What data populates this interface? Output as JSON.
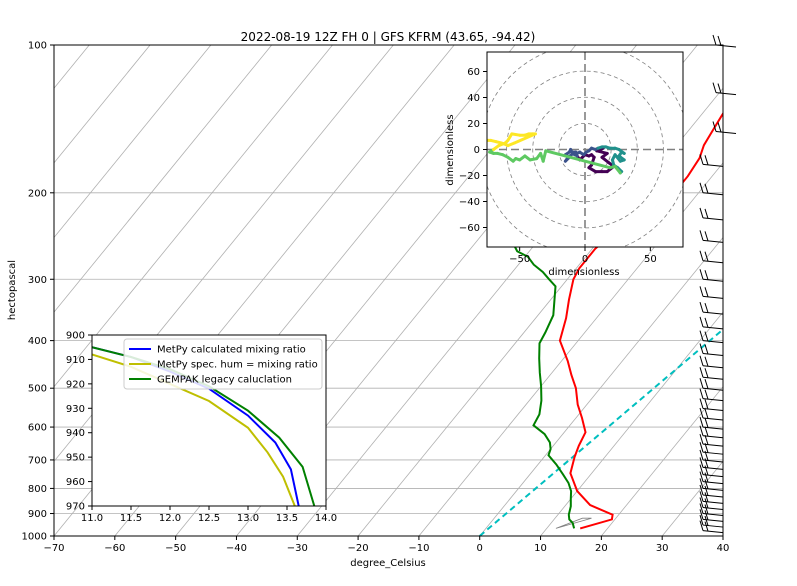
{
  "chart_data": [
    {
      "type": "line",
      "subtype": "skew-t",
      "title": "2022-08-19 12Z FH 0 | GFS KFRM (43.65, -94.42)",
      "xlabel": "degree_Celsius",
      "ylabel": "hectopascal",
      "xlim": [
        -70,
        40
      ],
      "ylim": [
        1000,
        100
      ],
      "yscale": "log",
      "grid": true,
      "xticks": [
        "−70",
        "−60",
        "−50",
        "−40",
        "−30",
        "−20",
        "−10",
        "0",
        "10",
        "20",
        "30",
        "40"
      ],
      "yticks": [
        "100",
        "200",
        "300",
        "400",
        "500",
        "600",
        "700",
        "800",
        "900",
        "1000"
      ],
      "series": [
        {
          "role": "temperature",
          "color": "#ff0000",
          "points": [
            [
              15.5,
              965
            ],
            [
              19.5,
              925
            ],
            [
              19.0,
              905
            ],
            [
              14.0,
              865
            ],
            [
              10.0,
              810
            ],
            [
              6.5,
              745
            ],
            [
              5.0,
              690
            ],
            [
              4.2,
              655
            ],
            [
              3.5,
              615
            ],
            [
              1.0,
              575
            ],
            [
              -1.5,
              540
            ],
            [
              -4.0,
              500
            ],
            [
              -6.5,
              470
            ],
            [
              -9.0,
              440
            ],
            [
              -13.0,
              400
            ],
            [
              -15.0,
              360
            ],
            [
              -17.0,
              330
            ],
            [
              -19.0,
              300
            ],
            [
              -19.5,
              285
            ],
            [
              -19.5,
              260
            ],
            [
              -18.8,
              245
            ],
            [
              -18.0,
              235
            ],
            [
              -16.5,
              225
            ],
            [
              -15.0,
              210
            ],
            [
              -14.0,
              200
            ],
            [
              -14.0,
              185
            ],
            [
              -14.5,
              170
            ],
            [
              -15.5,
              160
            ],
            [
              -16.0,
              150
            ],
            [
              -16.5,
              140
            ],
            [
              -17.0,
              130
            ],
            [
              -17.5,
              120
            ],
            [
              -18.0,
              110
            ],
            [
              -18.2,
              100
            ]
          ]
        },
        {
          "role": "dewpoint",
          "color": "#008000",
          "points": [
            [
              14.5,
              965
            ],
            [
              13.5,
              940
            ],
            [
              12.5,
              925
            ],
            [
              11.8,
              905
            ],
            [
              11.0,
              870
            ],
            [
              10.0,
              840
            ],
            [
              9.0,
              810
            ],
            [
              7.5,
              780
            ],
            [
              5.5,
              750
            ],
            [
              3.0,
              715
            ],
            [
              0.5,
              685
            ],
            [
              0.0,
              665
            ],
            [
              -1.0,
              645
            ],
            [
              -3.0,
              620
            ],
            [
              -6.0,
              595
            ],
            [
              -6.5,
              565
            ],
            [
              -8.0,
              530
            ],
            [
              -10.0,
              495
            ],
            [
              -12.0,
              465
            ],
            [
              -14.0,
              435
            ],
            [
              -16.0,
              405
            ],
            [
              -16.5,
              385
            ],
            [
              -17.5,
              355
            ],
            [
              -21.0,
              310
            ],
            [
              -23.0,
              300
            ],
            [
              -25.0,
              290
            ],
            [
              -27.5,
              280
            ],
            [
              -29.5,
              270
            ],
            [
              -32.0,
              263
            ],
            [
              -34.0,
              252
            ],
            [
              -36.0,
              238
            ],
            [
              -37.0,
              225
            ],
            [
              -39.5,
              210
            ],
            [
              -41.0,
              200
            ]
          ]
        }
      ],
      "reference_lines": [
        {
          "role": "dashed-cyan",
          "color": "#00bfbf",
          "points": [
            [
              0,
              1000
            ],
            [
              29.3,
              100
            ]
          ]
        },
        {
          "role": "dry-adiabat-grey",
          "color": "#808080",
          "points": [
            [
              11.5,
              965
            ],
            [
              16.0,
              920
            ],
            [
              14.5,
              920
            ],
            [
              11.5,
              965
            ]
          ]
        }
      ],
      "wind_barbs_column_x_degC": 37
    },
    {
      "type": "line",
      "subtype": "hodograph",
      "xlabel": "dimensionless",
      "ylabel": "dimensionless",
      "xlim": [
        -75,
        75
      ],
      "ylim": [
        -75,
        75
      ],
      "xticks": [
        "−50",
        "0",
        "50"
      ],
      "yticks": [
        "60",
        "40",
        "20",
        "0",
        "−20",
        "−40",
        "−60"
      ],
      "rings": [
        20,
        40,
        60,
        80
      ],
      "path": [
        [
          14,
          1
        ],
        [
          9,
          -1
        ],
        [
          17,
          -3
        ],
        [
          13,
          -6
        ],
        [
          18,
          -10
        ],
        [
          22,
          -13
        ],
        [
          17,
          -17
        ],
        [
          13,
          -17
        ],
        [
          8,
          -17
        ],
        [
          3,
          -14
        ],
        [
          5,
          -12
        ],
        [
          7,
          -6
        ],
        [
          5,
          -4
        ],
        [
          3,
          -5
        ],
        [
          0,
          -4
        ],
        [
          -2,
          -6
        ],
        [
          -4,
          -8
        ],
        [
          -6,
          -5
        ],
        [
          -9,
          -3
        ],
        [
          -13,
          -6
        ],
        [
          -15,
          -9
        ],
        [
          -12,
          -6
        ],
        [
          -15,
          -4
        ],
        [
          -12,
          -2
        ],
        [
          -11,
          0
        ],
        [
          -10,
          -2
        ],
        [
          -7,
          -2
        ],
        [
          -8,
          -4
        ],
        [
          -4,
          -2
        ],
        [
          -1,
          -4
        ],
        [
          1,
          -2
        ],
        [
          3,
          -1
        ],
        [
          5,
          1
        ],
        [
          8,
          0
        ],
        [
          10,
          1
        ],
        [
          13,
          2
        ],
        [
          16,
          2
        ],
        [
          19,
          1
        ],
        [
          23,
          1
        ],
        [
          26,
          0
        ],
        [
          30,
          -3
        ],
        [
          28,
          -2
        ],
        [
          26,
          -5
        ],
        [
          30,
          -8
        ],
        [
          27,
          -9
        ],
        [
          23,
          -4
        ],
        [
          21,
          -8
        ],
        [
          22,
          -12
        ],
        [
          25,
          -14
        ],
        [
          28,
          -17
        ],
        [
          27,
          -18
        ],
        [
          23,
          -13
        ],
        [
          19,
          -14
        ],
        [
          -30,
          -1
        ],
        [
          -32,
          -9
        ],
        [
          -34,
          -3
        ],
        [
          -37,
          -7
        ],
        [
          -42,
          -8
        ],
        [
          -46,
          -5
        ],
        [
          -50,
          -8
        ],
        [
          -53,
          -7
        ],
        [
          -55,
          -9
        ],
        [
          -59,
          -6
        ],
        [
          -63,
          -4
        ],
        [
          -67,
          -3
        ],
        [
          -70,
          -3
        ],
        [
          -73,
          -2
        ],
        [
          -70,
          0
        ],
        [
          -66,
          3
        ],
        [
          -61,
          5
        ],
        [
          -59,
          7
        ],
        [
          -56,
          12
        ],
        [
          -50,
          11
        ],
        [
          -46,
          11
        ],
        [
          -43,
          12
        ],
        [
          -40,
          12
        ],
        [
          -38,
          12
        ],
        [
          -54,
          5
        ],
        [
          -59,
          3
        ],
        [
          -61,
          4
        ],
        [
          -64,
          5
        ],
        [
          -68,
          6
        ],
        [
          -72,
          7
        ],
        [
          -76,
          7
        ]
      ],
      "colormap": [
        "#440154",
        "#3b528b",
        "#21918c",
        "#5ec962",
        "#fde725"
      ]
    },
    {
      "type": "line",
      "subtype": "inset",
      "xlim": [
        11.0,
        14.0
      ],
      "ylim": [
        970,
        900
      ],
      "xticks": [
        "11.0",
        "11.5",
        "12.0",
        "12.5",
        "13.0",
        "13.5",
        "14.0"
      ],
      "yticks": [
        "900",
        "910",
        "920",
        "930",
        "940",
        "950",
        "960",
        "970"
      ],
      "series": [
        {
          "name": "MetPy calculated mixing ratio",
          "color": "#0000ff",
          "points": [
            [
              11.0,
              905
            ],
            [
              11.5,
              909
            ],
            [
              12.0,
              915
            ],
            [
              12.5,
              922
            ],
            [
              13.0,
              933
            ],
            [
              13.35,
              944
            ],
            [
              13.55,
              955
            ],
            [
              13.65,
              970
            ]
          ]
        },
        {
          "name": "MetPy spec. hum = mixing ratio",
          "color": "#bfbf00",
          "points": [
            [
              11.0,
              908
            ],
            [
              11.5,
              913
            ],
            [
              12.0,
              920
            ],
            [
              12.5,
              927
            ],
            [
              13.0,
              938
            ],
            [
              13.25,
              948
            ],
            [
              13.45,
              958
            ],
            [
              13.6,
              970
            ]
          ]
        },
        {
          "name": "GEMPAK legacy caluclation",
          "color": "#008000",
          "points": [
            [
              11.0,
              905
            ],
            [
              11.5,
              909
            ],
            [
              12.0,
              914
            ],
            [
              12.5,
              921
            ],
            [
              13.0,
              931
            ],
            [
              13.4,
              942
            ],
            [
              13.7,
              954
            ],
            [
              13.85,
              970
            ]
          ]
        }
      ]
    }
  ]
}
